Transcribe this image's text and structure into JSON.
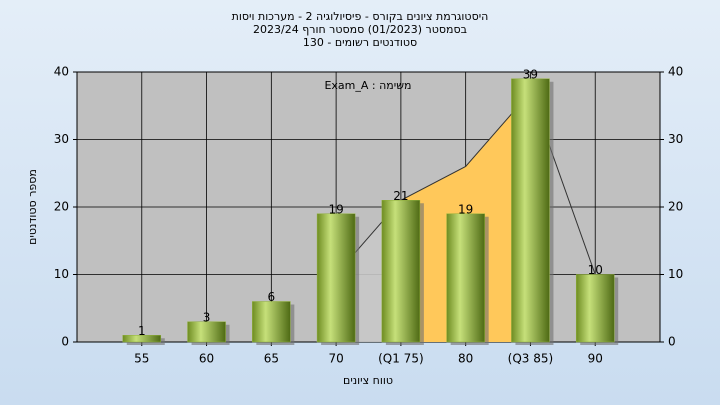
{
  "chart_data": {
    "type": "bar",
    "title": "היסטוגרמת ציונים בקורס - פיסיולוגיה 2 - מערכות ויסות",
    "subtitle": "בסמסטר  (01/2023)  סמסטר חורף 2023/24",
    "subtitle2": "סטודנטים רשומים - 130",
    "annotation": "משימה : Exam_A",
    "x_label": "טווח ציונים",
    "y_label": "מספר סטודנטים",
    "categories": [
      "55",
      "60",
      "65",
      "70",
      "(Q1 75)",
      "80",
      "(Q3 85)",
      "90"
    ],
    "values": [
      1,
      3,
      6,
      19,
      21,
      19,
      39,
      10
    ],
    "color": "#8fb03a",
    "area": {
      "values": [
        null,
        null,
        null,
        10,
        21,
        26,
        37,
        10
      ],
      "color": "#c8c8c8",
      "band_color": "#ffc85a"
    },
    "ylim": [
      0,
      40
    ],
    "yticks": [
      0,
      10,
      20,
      30,
      40
    ],
    "y2lim": [
      0,
      40
    ],
    "y2ticks": [
      0,
      10,
      20,
      30,
      40
    ],
    "grid": true
  }
}
